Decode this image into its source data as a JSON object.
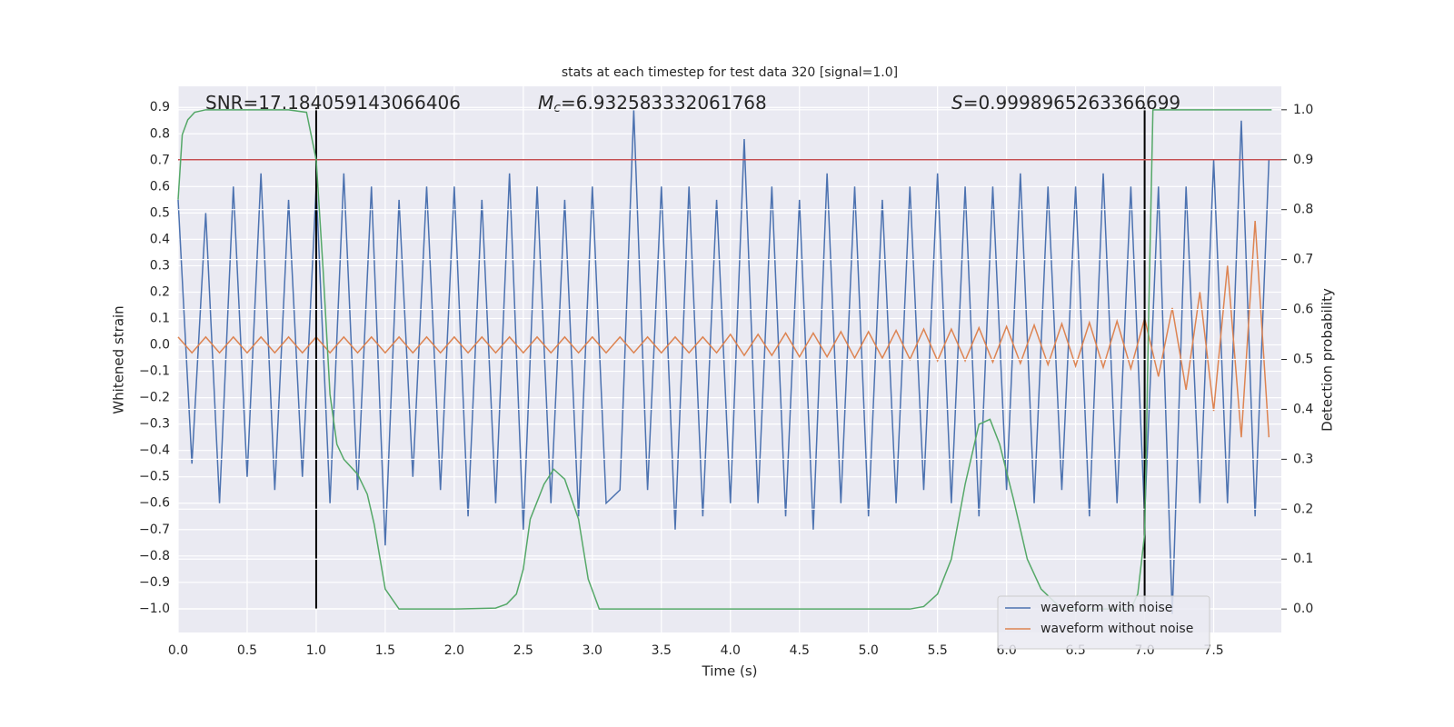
{
  "chart_data": {
    "type": "line",
    "title": "stats at each timestep for test data 320 [signal=1.0]",
    "xlabel": "Time (s)",
    "ylabel": "Whitened strain",
    "y2label": "Detection probability",
    "xlim": [
      0,
      7.99
    ],
    "ylim": [
      -1.09,
      0.98
    ],
    "y2lim": [
      -0.047,
      1.047
    ],
    "grid": true,
    "legend": "lower right",
    "xticks": [
      {
        "value": 0,
        "label": "0.0"
      },
      {
        "value": 0.5,
        "label": "0.5"
      },
      {
        "value": 1,
        "label": "1.0"
      },
      {
        "value": 1.5,
        "label": "1.5"
      },
      {
        "value": 2,
        "label": "2.0"
      },
      {
        "value": 2.5,
        "label": "2.5"
      },
      {
        "value": 3,
        "label": "3.0"
      },
      {
        "value": 3.5,
        "label": "3.5"
      },
      {
        "value": 4,
        "label": "4.0"
      },
      {
        "value": 4.5,
        "label": "4.5"
      },
      {
        "value": 5,
        "label": "5.0"
      },
      {
        "value": 5.5,
        "label": "5.5"
      },
      {
        "value": 6,
        "label": "6.0"
      },
      {
        "value": 6.5,
        "label": "6.5"
      },
      {
        "value": 7,
        "label": "7.0"
      },
      {
        "value": 7.5,
        "label": "7.5"
      }
    ],
    "yticks": [
      {
        "value": -1.0,
        "label": "−1.0"
      },
      {
        "value": -0.9,
        "label": "−0.9"
      },
      {
        "value": -0.8,
        "label": "−0.8"
      },
      {
        "value": -0.7,
        "label": "−0.7"
      },
      {
        "value": -0.6,
        "label": "−0.6"
      },
      {
        "value": -0.5,
        "label": "−0.5"
      },
      {
        "value": -0.4,
        "label": "−0.4"
      },
      {
        "value": -0.3,
        "label": "−0.3"
      },
      {
        "value": -0.2,
        "label": "−0.2"
      },
      {
        "value": -0.1,
        "label": "−0.1"
      },
      {
        "value": 0,
        "label": "0.0"
      },
      {
        "value": 0.1,
        "label": "0.1"
      },
      {
        "value": 0.2,
        "label": "0.2"
      },
      {
        "value": 0.3,
        "label": "0.3"
      },
      {
        "value": 0.4,
        "label": "0.4"
      },
      {
        "value": 0.5,
        "label": "0.5"
      },
      {
        "value": 0.6,
        "label": "0.6"
      },
      {
        "value": 0.7,
        "label": "0.7"
      },
      {
        "value": 0.8,
        "label": "0.8"
      },
      {
        "value": 0.9,
        "label": "0.9"
      }
    ],
    "y2ticks": [
      {
        "value": 0,
        "label": "0.0"
      },
      {
        "value": 0.1,
        "label": "0.1"
      },
      {
        "value": 0.2,
        "label": "0.2"
      },
      {
        "value": 0.3,
        "label": "0.3"
      },
      {
        "value": 0.4,
        "label": "0.4"
      },
      {
        "value": 0.5,
        "label": "0.5"
      },
      {
        "value": 0.6,
        "label": "0.6"
      },
      {
        "value": 0.7,
        "label": "0.7"
      },
      {
        "value": 0.8,
        "label": "0.8"
      },
      {
        "value": 0.9,
        "label": "0.9"
      },
      {
        "value": 1,
        "label": "1.0"
      }
    ],
    "x": [
      0,
      0.1,
      0.2,
      0.3,
      0.4,
      0.5,
      0.6,
      0.7,
      0.8,
      0.9,
      1,
      1.1,
      1.2,
      1.3,
      1.4,
      1.5,
      1.6,
      1.7,
      1.8,
      1.9,
      2,
      2.1,
      2.2,
      2.3,
      2.4,
      2.5,
      2.6,
      2.7,
      2.8,
      2.9,
      3,
      3.1,
      3.2,
      3.3,
      3.4,
      3.5,
      3.6,
      3.7,
      3.8,
      3.9,
      4,
      4.1,
      4.2,
      4.3,
      4.4,
      4.5,
      4.6,
      4.7,
      4.8,
      4.9,
      5,
      5.1,
      5.2,
      5.3,
      5.4,
      5.5,
      5.6,
      5.7,
      5.8,
      5.9,
      6,
      6.1,
      6.2,
      6.3,
      6.4,
      6.5,
      6.6,
      6.7,
      6.8,
      6.9,
      7,
      7.1,
      7.2,
      7.3,
      7.4,
      7.5,
      7.6,
      7.7,
      7.8,
      7.9
    ],
    "series": [
      {
        "name": "waveform with noise",
        "color": "#4c72b0",
        "values": [
          0.55,
          -0.45,
          0.5,
          -0.6,
          0.6,
          -0.5,
          0.65,
          -0.55,
          0.55,
          -0.5,
          0.6,
          -0.6,
          0.65,
          -0.55,
          0.6,
          -0.76,
          0.55,
          -0.5,
          0.6,
          -0.55,
          0.6,
          -0.65,
          0.55,
          -0.6,
          0.65,
          -0.7,
          0.6,
          -0.6,
          0.55,
          -0.65,
          0.6,
          -0.6,
          -0.55,
          0.89,
          -0.55,
          0.6,
          -0.7,
          0.6,
          -0.65,
          0.55,
          -0.6,
          0.78,
          -0.6,
          0.6,
          -0.65,
          0.55,
          -0.7,
          0.65,
          -0.6,
          0.6,
          -0.65,
          0.55,
          -0.6,
          0.6,
          -0.55,
          0.65,
          -0.6,
          0.6,
          -0.65,
          0.6,
          -0.55,
          0.65,
          -0.6,
          0.6,
          -0.55,
          0.6,
          -0.65,
          0.65,
          -0.6,
          0.6,
          -0.65,
          0.6,
          -1.02,
          0.6,
          -0.6,
          0.7,
          -0.6,
          0.85,
          -0.65,
          0.7
        ]
      },
      {
        "name": "waveform without noise",
        "color": "#dd8452",
        "values": [
          0.03,
          -0.03,
          0.03,
          -0.03,
          0.03,
          -0.03,
          0.03,
          -0.03,
          0.03,
          -0.03,
          0.03,
          -0.03,
          0.03,
          -0.03,
          0.03,
          -0.03,
          0.03,
          -0.03,
          0.03,
          -0.03,
          0.03,
          -0.03,
          0.03,
          -0.03,
          0.03,
          -0.03,
          0.03,
          -0.03,
          0.03,
          -0.03,
          0.03,
          -0.03,
          0.03,
          -0.03,
          0.03,
          -0.03,
          0.03,
          -0.03,
          0.03,
          -0.03,
          0.04,
          -0.04,
          0.04,
          -0.04,
          0.045,
          -0.045,
          0.045,
          -0.045,
          0.05,
          -0.05,
          0.05,
          -0.05,
          0.055,
          -0.055,
          0.06,
          -0.06,
          0.06,
          -0.06,
          0.065,
          -0.065,
          0.07,
          -0.07,
          0.075,
          -0.075,
          0.08,
          -0.08,
          0.085,
          -0.085,
          0.09,
          -0.09,
          0.1,
          -0.12,
          0.14,
          -0.17,
          0.2,
          -0.25,
          0.3,
          -0.35,
          0.47,
          -0.35
        ]
      },
      {
        "color": "#55a868",
        "axis": "y2",
        "x": [
          0,
          0.03,
          0.07,
          0.12,
          0.2,
          0.5,
          0.8,
          0.93,
          1.0,
          1.05,
          1.1,
          1.15,
          1.2,
          1.3,
          1.37,
          1.42,
          1.5,
          1.6,
          2.0,
          2.3,
          2.38,
          2.45,
          2.5,
          2.55,
          2.65,
          2.72,
          2.8,
          2.9,
          2.97,
          3.05,
          4.0,
          5.3,
          5.4,
          5.5,
          5.6,
          5.7,
          5.8,
          5.88,
          5.95,
          6.05,
          6.15,
          6.25,
          6.4,
          6.8,
          6.9,
          6.95,
          7.0,
          7.03,
          7.06,
          7.1,
          7.5,
          7.92
        ],
        "values": [
          0.82,
          0.95,
          0.98,
          0.995,
          1.0,
          1.0,
          1.0,
          0.995,
          0.9,
          0.68,
          0.43,
          0.33,
          0.3,
          0.27,
          0.23,
          0.17,
          0.04,
          0.0,
          0.0,
          0.002,
          0.01,
          0.03,
          0.08,
          0.18,
          0.25,
          0.28,
          0.26,
          0.18,
          0.06,
          0.0,
          0.0,
          0.0,
          0.005,
          0.03,
          0.1,
          0.25,
          0.37,
          0.38,
          0.33,
          0.22,
          0.1,
          0.04,
          0.0,
          0.0,
          0.0,
          0.03,
          0.15,
          0.6,
          1.0,
          1.0,
          1.0,
          1.0
        ]
      }
    ],
    "threshold": {
      "y2": 0.9,
      "color": "#c44e52"
    },
    "vlines": {
      "x": [
        1.0,
        7.0
      ],
      "ymin": -1.0,
      "ymax": 0.9,
      "color": "#000000"
    },
    "annotations": [
      {
        "text": "SNR=17.184059143066406"
      },
      {
        "symbol": "M",
        "subscript": "c",
        "text": "=6.932583332061768"
      },
      {
        "symbol": "S",
        "text": "=0.9998965263366699"
      }
    ]
  }
}
